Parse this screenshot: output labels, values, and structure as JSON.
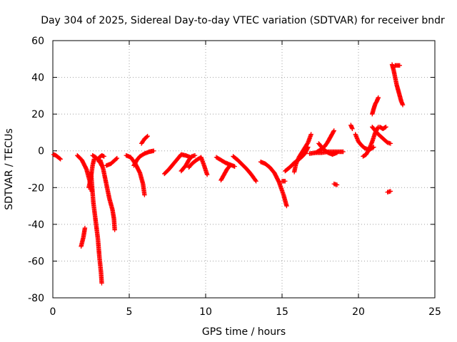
{
  "chart_data": {
    "type": "scatter",
    "title": "Day 304 of 2025, Sidereal Day-to-day VTEC variation (SDTVAR) for receiver bndr",
    "xlabel": "GPS time / hours",
    "ylabel": "SDTVAR / TECUs",
    "xlim": [
      0,
      25
    ],
    "ylim": [
      -80,
      60
    ],
    "xticks": [
      0,
      5,
      10,
      15,
      20,
      25
    ],
    "yticks": [
      -80,
      -60,
      -40,
      -20,
      0,
      20,
      40,
      60
    ],
    "grid": true,
    "marker": "+",
    "color": "#ff0000",
    "segments": [
      [
        [
          0.05,
          -2
        ],
        [
          0.2,
          -2.5
        ],
        [
          0.35,
          -3.5
        ],
        [
          0.5,
          -4.5
        ]
      ],
      [
        [
          1.6,
          -2.5
        ],
        [
          1.9,
          -5
        ],
        [
          2.2,
          -10
        ],
        [
          2.4,
          -16
        ],
        [
          2.55,
          -22
        ]
      ],
      [
        [
          1.85,
          -52
        ],
        [
          2.0,
          -47
        ],
        [
          2.1,
          -42
        ]
      ],
      [
        [
          2.35,
          -20
        ],
        [
          2.5,
          -14
        ],
        [
          2.6,
          -8
        ],
        [
          2.7,
          -4.5
        ]
      ],
      [
        [
          2.5,
          -12
        ],
        [
          2.65,
          -28
        ],
        [
          2.8,
          -38
        ],
        [
          2.95,
          -48
        ],
        [
          3.05,
          -58
        ],
        [
          3.15,
          -66
        ],
        [
          3.2,
          -72
        ]
      ],
      [
        [
          2.6,
          -2.5
        ],
        [
          2.8,
          -3.5
        ],
        [
          3.0,
          -5
        ],
        [
          3.2,
          -8
        ]
      ],
      [
        [
          2.9,
          -5
        ],
        [
          3.05,
          -3.5
        ],
        [
          3.2,
          -2.5
        ],
        [
          3.35,
          -3
        ]
      ],
      [
        [
          3.1,
          -5
        ],
        [
          3.3,
          -10
        ],
        [
          3.5,
          -18
        ],
        [
          3.7,
          -26
        ],
        [
          3.9,
          -32
        ],
        [
          4.0,
          -37
        ],
        [
          4.05,
          -43
        ]
      ],
      [
        [
          3.5,
          -8
        ],
        [
          3.8,
          -7
        ],
        [
          4.0,
          -5.5
        ],
        [
          4.2,
          -4
        ]
      ],
      [
        [
          4.8,
          -2.5
        ],
        [
          5.1,
          -3.5
        ],
        [
          5.4,
          -7
        ],
        [
          5.7,
          -12
        ],
        [
          5.9,
          -18
        ],
        [
          6.0,
          -24
        ]
      ],
      [
        [
          5.3,
          -8
        ],
        [
          5.5,
          -5
        ],
        [
          5.7,
          -3
        ],
        [
          6.0,
          -1.5
        ],
        [
          6.3,
          -0.5
        ],
        [
          6.6,
          0
        ]
      ],
      [
        [
          5.8,
          4
        ],
        [
          6.0,
          6.5
        ],
        [
          6.2,
          8
        ]
      ],
      [
        [
          7.3,
          -12.5
        ],
        [
          7.6,
          -10
        ],
        [
          7.9,
          -7
        ],
        [
          8.2,
          -4
        ],
        [
          8.4,
          -2
        ],
        [
          8.7,
          -2.5
        ],
        [
          9.0,
          -3.5
        ]
      ],
      [
        [
          8.4,
          -11
        ],
        [
          8.7,
          -8
        ],
        [
          8.9,
          -5
        ],
        [
          9.1,
          -3
        ],
        [
          9.3,
          -2.5
        ]
      ],
      [
        [
          8.9,
          -9
        ],
        [
          9.1,
          -7
        ],
        [
          9.4,
          -5
        ],
        [
          9.7,
          -3.5
        ],
        [
          9.9,
          -8
        ],
        [
          10.1,
          -13
        ]
      ],
      [
        [
          10.7,
          -3.5
        ],
        [
          11.0,
          -5
        ],
        [
          11.3,
          -6.5
        ],
        [
          11.6,
          -7.5
        ],
        [
          11.9,
          -8.5
        ]
      ],
      [
        [
          11.0,
          -16
        ],
        [
          11.2,
          -13
        ],
        [
          11.4,
          -10
        ],
        [
          11.6,
          -8
        ]
      ],
      [
        [
          11.8,
          -3
        ],
        [
          12.1,
          -5
        ],
        [
          12.4,
          -7.5
        ],
        [
          12.7,
          -10
        ],
        [
          13.0,
          -13
        ],
        [
          13.3,
          -16.5
        ]
      ],
      [
        [
          13.6,
          -6
        ],
        [
          13.9,
          -7
        ],
        [
          14.2,
          -9
        ],
        [
          14.5,
          -12
        ],
        [
          14.8,
          -17
        ],
        [
          15.1,
          -24
        ],
        [
          15.3,
          -30
        ]
      ],
      [
        [
          15.0,
          -16.5
        ],
        [
          15.2,
          -16.5
        ]
      ],
      [
        [
          15.2,
          -11
        ],
        [
          15.5,
          -9
        ],
        [
          15.8,
          -6.5
        ],
        [
          16.2,
          -4
        ],
        [
          16.5,
          -1.5
        ],
        [
          16.7,
          2
        ]
      ],
      [
        [
          15.8,
          -11.5
        ],
        [
          15.9,
          -7.5
        ],
        [
          16.1,
          -3.5
        ],
        [
          16.4,
          0.5
        ],
        [
          16.7,
          4.5
        ],
        [
          16.9,
          9
        ]
      ],
      [
        [
          16.8,
          -1.5
        ],
        [
          17.2,
          -1
        ],
        [
          17.6,
          -1
        ],
        [
          18.0,
          -0.5
        ],
        [
          18.4,
          -0.5
        ],
        [
          18.8,
          -0.5
        ],
        [
          19.0,
          -0.5
        ]
      ],
      [
        [
          17.2,
          -1
        ],
        [
          17.5,
          0.5
        ],
        [
          17.8,
          2.5
        ],
        [
          18.0,
          5
        ],
        [
          18.2,
          8
        ],
        [
          18.4,
          11
        ]
      ],
      [
        [
          17.4,
          4
        ],
        [
          17.7,
          1
        ],
        [
          18.0,
          -1
        ],
        [
          18.3,
          -2
        ],
        [
          18.6,
          -1
        ]
      ],
      [
        [
          18.4,
          -18
        ],
        [
          18.6,
          -18.5
        ]
      ],
      [
        [
          19.5,
          14
        ],
        [
          19.6,
          12
        ]
      ],
      [
        [
          19.8,
          9
        ],
        [
          20.0,
          5
        ],
        [
          20.2,
          3
        ],
        [
          20.4,
          1.5
        ],
        [
          20.7,
          0.5
        ],
        [
          21.0,
          2
        ]
      ],
      [
        [
          20.3,
          -3
        ],
        [
          20.5,
          -2
        ],
        [
          20.7,
          1
        ],
        [
          20.9,
          5
        ],
        [
          21.1,
          10
        ],
        [
          21.3,
          13
        ]
      ],
      [
        [
          20.9,
          13
        ],
        [
          21.1,
          11
        ],
        [
          21.3,
          9
        ],
        [
          21.5,
          7.5
        ],
        [
          21.7,
          6
        ],
        [
          21.9,
          4.5
        ],
        [
          22.1,
          4
        ]
      ],
      [
        [
          21.4,
          13
        ],
        [
          21.6,
          12
        ],
        [
          21.8,
          13
        ]
      ],
      [
        [
          20.9,
          20
        ],
        [
          21.0,
          23
        ],
        [
          21.1,
          25.5
        ],
        [
          21.2,
          27
        ],
        [
          21.3,
          29
        ]
      ],
      [
        [
          21.9,
          -22.5
        ],
        [
          22.1,
          -22
        ]
      ],
      [
        [
          22.2,
          47
        ],
        [
          22.3,
          44
        ],
        [
          22.4,
          40
        ],
        [
          22.5,
          36
        ],
        [
          22.6,
          33
        ],
        [
          22.7,
          30
        ],
        [
          22.8,
          27
        ],
        [
          22.9,
          25
        ]
      ],
      [
        [
          22.4,
          46.5
        ],
        [
          22.7,
          46.5
        ]
      ]
    ]
  }
}
